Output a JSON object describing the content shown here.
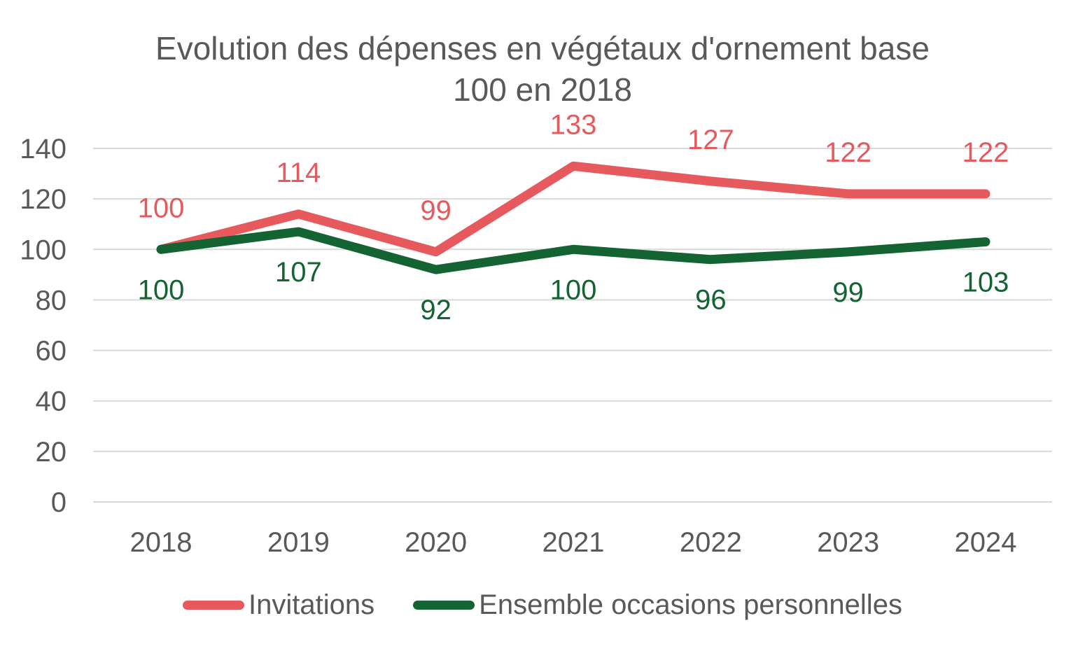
{
  "chart_data": {
    "type": "line",
    "title": "Evolution des dépenses en végétaux d'ornement base 100 en 2018",
    "title_lines": [
      "Evolution des dépenses en végétaux d'ornement base",
      "100 en 2018"
    ],
    "categories": [
      "2018",
      "2019",
      "2020",
      "2021",
      "2022",
      "2023",
      "2024"
    ],
    "series": [
      {
        "name": "Invitations",
        "color": "#E65A5E",
        "values": [
          100,
          114,
          99,
          133,
          127,
          122,
          122
        ],
        "label_position": "above"
      },
      {
        "name": "Ensemble occasions personnelles",
        "color": "#146333",
        "values": [
          100,
          107,
          92,
          100,
          96,
          99,
          103
        ],
        "label_position": "below"
      }
    ],
    "xlabel": "",
    "ylabel": "",
    "ylim": [
      0,
      140
    ],
    "yticks": [
      0,
      20,
      40,
      60,
      80,
      100,
      120,
      140
    ],
    "grid": "horizontal",
    "data_labels": true,
    "legend_position": "bottom",
    "colors": {
      "axis_text": "#595959",
      "gridline": "#D9D9D9",
      "background": "#FFFFFF"
    }
  }
}
